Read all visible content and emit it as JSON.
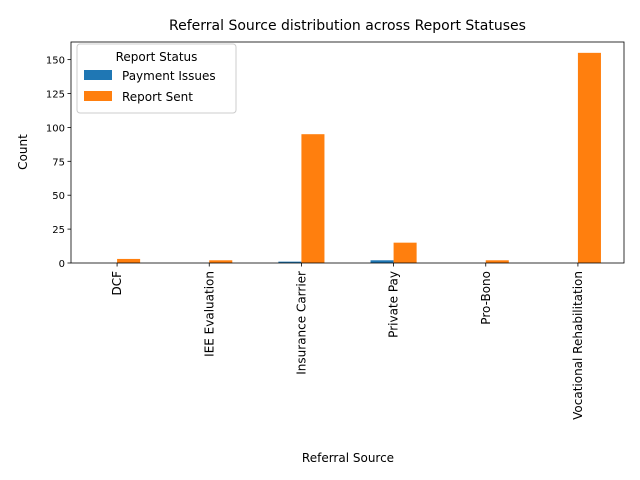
{
  "colors": {
    "series": [
      "#1f77b4",
      "#ff7f0e"
    ],
    "axis": "#000000",
    "background": "#ffffff",
    "legend_border": "#cccccc"
  },
  "chart_data": {
    "type": "bar",
    "title": "Referral Source distribution across Report Statuses",
    "xlabel": "Referral Source",
    "ylabel": "Count",
    "categories": [
      "DCF",
      "IEE Evaluation",
      "Insurance Carrier",
      "Private Pay",
      "Pro-Bono",
      "Vocational Rehabilitation"
    ],
    "series": [
      {
        "name": "Payment Issues",
        "values": [
          0,
          0,
          1,
          2,
          0,
          0
        ]
      },
      {
        "name": "Report Sent",
        "values": [
          3,
          2,
          95,
          15,
          2,
          155
        ]
      }
    ],
    "ylim": [
      0,
      163
    ],
    "yticks": [
      0,
      25,
      50,
      75,
      100,
      125,
      150
    ],
    "legend": {
      "title": "Report Status",
      "placement": "top-left"
    },
    "grid": false
  }
}
